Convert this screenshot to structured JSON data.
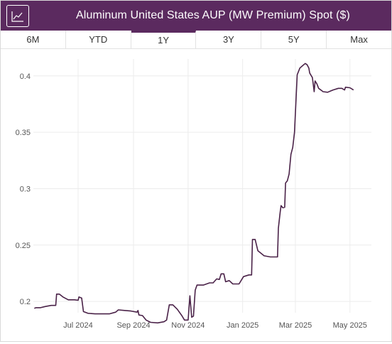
{
  "header": {
    "title": "Aluminum United States AUP (MW Premium) Spot ($)",
    "icon": "line-chart-icon",
    "background_color": "#5b2a5f"
  },
  "tabs": [
    {
      "label": "6M",
      "active": false
    },
    {
      "label": "YTD",
      "active": false
    },
    {
      "label": "1Y",
      "active": true
    },
    {
      "label": "3Y",
      "active": false
    },
    {
      "label": "5Y",
      "active": false
    },
    {
      "label": "Max",
      "active": false
    }
  ],
  "chart_data": {
    "type": "line",
    "title": "",
    "xlabel": "",
    "ylabel": "",
    "line_color": "#4a2248",
    "grid": true,
    "ylim": [
      0.19,
      0.415
    ],
    "xlim": [
      "2024-05-12",
      "2025-05-25"
    ],
    "x_ticks": [
      {
        "date": "2024-07-01",
        "label": "Jul 2024"
      },
      {
        "date": "2024-09-01",
        "label": "Sep 2024"
      },
      {
        "date": "2024-11-01",
        "label": "Nov 2024"
      },
      {
        "date": "2025-01-01",
        "label": "Jan 2025"
      },
      {
        "date": "2025-03-01",
        "label": "Mar 2025"
      },
      {
        "date": "2025-05-01",
        "label": "May 2025"
      }
    ],
    "y_ticks": [
      {
        "value": 0.2,
        "label": "0.2"
      },
      {
        "value": 0.25,
        "label": "0.25"
      },
      {
        "value": 0.3,
        "label": "0.3"
      },
      {
        "value": 0.35,
        "label": "0.35"
      },
      {
        "value": 0.4,
        "label": "0.4"
      }
    ],
    "points": [
      [
        "2024-05-13",
        0.194
      ],
      [
        "2024-05-15",
        0.1945
      ],
      [
        "2024-05-20",
        0.1945
      ],
      [
        "2024-05-25",
        0.1955
      ],
      [
        "2024-06-01",
        0.1965
      ],
      [
        "2024-06-06",
        0.1965
      ],
      [
        "2024-06-07",
        0.2065
      ],
      [
        "2024-06-10",
        0.2065
      ],
      [
        "2024-06-14",
        0.204
      ],
      [
        "2024-06-20",
        0.2015
      ],
      [
        "2024-06-27",
        0.2015
      ],
      [
        "2024-07-01",
        0.201
      ],
      [
        "2024-07-02",
        0.204
      ],
      [
        "2024-07-05",
        0.203
      ],
      [
        "2024-07-07",
        0.191
      ],
      [
        "2024-07-12",
        0.1895
      ],
      [
        "2024-07-20",
        0.189
      ],
      [
        "2024-07-30",
        0.189
      ],
      [
        "2024-08-05",
        0.189
      ],
      [
        "2024-08-12",
        0.1905
      ],
      [
        "2024-08-15",
        0.1925
      ],
      [
        "2024-08-22",
        0.192
      ],
      [
        "2024-08-29",
        0.1915
      ],
      [
        "2024-09-05",
        0.1905
      ],
      [
        "2024-09-06",
        0.192
      ],
      [
        "2024-09-07",
        0.188
      ],
      [
        "2024-09-11",
        0.1875
      ],
      [
        "2024-09-15",
        0.1835
      ],
      [
        "2024-09-20",
        0.1815
      ],
      [
        "2024-09-28",
        0.181
      ],
      [
        "2024-10-05",
        0.182
      ],
      [
        "2024-10-08",
        0.1835
      ],
      [
        "2024-10-11",
        0.197
      ],
      [
        "2024-10-15",
        0.197
      ],
      [
        "2024-10-20",
        0.193
      ],
      [
        "2024-10-25",
        0.1875
      ],
      [
        "2024-10-28",
        0.1835
      ],
      [
        "2024-11-01",
        0.1835
      ],
      [
        "2024-11-03",
        0.205
      ],
      [
        "2024-11-05",
        0.186
      ],
      [
        "2024-11-07",
        0.187
      ],
      [
        "2024-11-09",
        0.21
      ],
      [
        "2024-11-11",
        0.2145
      ],
      [
        "2024-11-18",
        0.2145
      ],
      [
        "2024-11-25",
        0.2165
      ],
      [
        "2024-11-29",
        0.2165
      ],
      [
        "2024-12-03",
        0.22
      ],
      [
        "2024-12-06",
        0.2195
      ],
      [
        "2024-12-08",
        0.2245
      ],
      [
        "2024-12-11",
        0.2245
      ],
      [
        "2024-12-13",
        0.2175
      ],
      [
        "2024-12-17",
        0.2185
      ],
      [
        "2024-12-21",
        0.2155
      ],
      [
        "2024-12-28",
        0.2155
      ],
      [
        "2025-01-02",
        0.222
      ],
      [
        "2025-01-08",
        0.2235
      ],
      [
        "2025-01-11",
        0.2235
      ],
      [
        "2025-01-12",
        0.255
      ],
      [
        "2025-01-15",
        0.255
      ],
      [
        "2025-01-18",
        0.245
      ],
      [
        "2025-01-25",
        0.2405
      ],
      [
        "2025-02-01",
        0.2395
      ],
      [
        "2025-02-09",
        0.2395
      ],
      [
        "2025-02-10",
        0.265
      ],
      [
        "2025-02-12",
        0.2795
      ],
      [
        "2025-02-13",
        0.285
      ],
      [
        "2025-02-15",
        0.283
      ],
      [
        "2025-02-17",
        0.2835
      ],
      [
        "2025-02-18",
        0.305
      ],
      [
        "2025-02-20",
        0.307
      ],
      [
        "2025-02-22",
        0.313
      ],
      [
        "2025-02-24",
        0.3305
      ],
      [
        "2025-02-26",
        0.3365
      ],
      [
        "2025-02-28",
        0.35
      ],
      [
        "2025-03-03",
        0.401
      ],
      [
        "2025-03-06",
        0.407
      ],
      [
        "2025-03-09",
        0.409
      ],
      [
        "2025-03-12",
        0.411
      ],
      [
        "2025-03-14",
        0.41
      ],
      [
        "2025-03-16",
        0.407
      ],
      [
        "2025-03-17",
        0.4025
      ],
      [
        "2025-03-20",
        0.3985
      ],
      [
        "2025-03-22",
        0.386
      ],
      [
        "2025-03-23",
        0.3955
      ],
      [
        "2025-03-25",
        0.393
      ],
      [
        "2025-03-27",
        0.389
      ],
      [
        "2025-04-01",
        0.386
      ],
      [
        "2025-04-06",
        0.3855
      ],
      [
        "2025-04-12",
        0.3875
      ],
      [
        "2025-04-18",
        0.389
      ],
      [
        "2025-04-22",
        0.389
      ],
      [
        "2025-04-25",
        0.3875
      ],
      [
        "2025-04-26",
        0.39
      ],
      [
        "2025-05-01",
        0.3895
      ],
      [
        "2025-05-05",
        0.3875
      ]
    ]
  }
}
